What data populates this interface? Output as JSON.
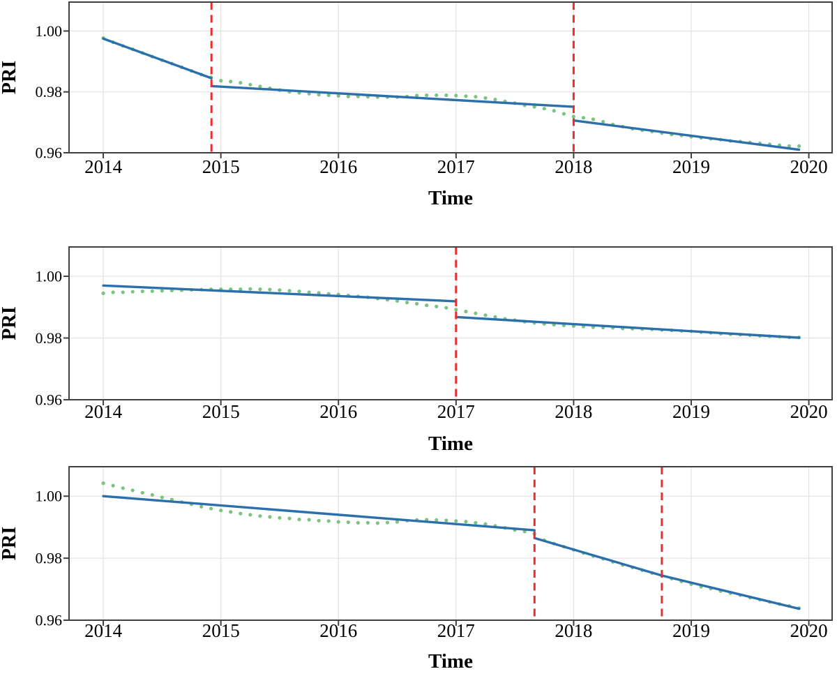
{
  "figure": {
    "background": "#ffffff",
    "colors": {
      "trend_line": "#2b6fac",
      "scatter_dot": "#7cc47e",
      "breakpoint_line": "#ec2d2d",
      "grid": "#e4e4e4",
      "axis": "#3f3f3f",
      "text": "#000000"
    }
  },
  "chart_data": [
    {
      "type": "scatter",
      "panel": "top",
      "xlabel": "Time",
      "ylabel": "PRI",
      "xlim": [
        2013.709,
        2020.198
      ],
      "ylim": [
        0.96,
        1.0095
      ],
      "grid": true,
      "xticks": [
        2014,
        2015,
        2016,
        2017,
        2018,
        2019,
        2020
      ],
      "xtick_labels": [
        "2014",
        "2015",
        "2016",
        "2017",
        "2018",
        "2019",
        "2020"
      ],
      "yticks": [
        0.96,
        0.98,
        1.0
      ],
      "ytick_labels": [
        "0.96",
        "0.98",
        "1.00"
      ],
      "breakpoints": [
        2014.92,
        2018.0
      ],
      "trend_segments": [
        {
          "x0": 2014.0,
          "y0": 0.9975,
          "x1": 2014.92,
          "y1": 0.9845
        },
        {
          "x0": 2014.92,
          "y0": 0.9819,
          "x1": 2018.0,
          "y1": 0.9751
        },
        {
          "x0": 2018.0,
          "y0": 0.9706,
          "x1": 2019.917,
          "y1": 0.961
        }
      ],
      "scatter": {
        "x_start": 2014.0,
        "x_step": 0.0833333,
        "count": 72,
        "y": [
          0.9977,
          0.9963,
          0.9951,
          0.994,
          0.9928,
          0.9916,
          0.9904,
          0.9893,
          0.9881,
          0.9869,
          0.9857,
          0.9848,
          0.9837,
          0.9834,
          0.983,
          0.9824,
          0.9818,
          0.9812,
          0.9806,
          0.98,
          0.9797,
          0.9794,
          0.9791,
          0.9789,
          0.9787,
          0.9785,
          0.9785,
          0.9784,
          0.9783,
          0.9783,
          0.9783,
          0.9785,
          0.9788,
          0.9789,
          0.9789,
          0.9789,
          0.9788,
          0.9786,
          0.9784,
          0.978,
          0.9775,
          0.9769,
          0.9763,
          0.9756,
          0.9751,
          0.9745,
          0.9738,
          0.9728,
          0.9719,
          0.9715,
          0.971,
          0.9702,
          0.9693,
          0.9686,
          0.9679,
          0.9674,
          0.967,
          0.9665,
          0.966,
          0.9657,
          0.9653,
          0.9649,
          0.9646,
          0.9643,
          0.9639,
          0.9637,
          0.9634,
          0.9631,
          0.9628,
          0.9625,
          0.9622,
          0.9622
        ]
      }
    },
    {
      "type": "scatter",
      "panel": "middle",
      "xlabel": "Time",
      "ylabel": "PRI",
      "xlim": [
        2013.709,
        2020.198
      ],
      "ylim": [
        0.96,
        1.0095
      ],
      "grid": true,
      "xticks": [
        2014,
        2015,
        2016,
        2017,
        2018,
        2019,
        2020
      ],
      "xtick_labels": [
        "2014",
        "2015",
        "2016",
        "2017",
        "2018",
        "2019",
        "2020"
      ],
      "yticks": [
        0.96,
        0.98,
        1.0
      ],
      "ytick_labels": [
        "0.96",
        "0.98",
        "1.00"
      ],
      "breakpoints": [
        2017.0
      ],
      "trend_segments": [
        {
          "x0": 2014.0,
          "y0": 0.997,
          "x1": 2017.0,
          "y1": 0.9919
        },
        {
          "x0": 2017.0,
          "y0": 0.9868,
          "x1": 2019.917,
          "y1": 0.9801
        }
      ],
      "scatter": {
        "x_start": 2014.0,
        "x_step": 0.0833333,
        "count": 72,
        "y": [
          0.9945,
          0.9948,
          0.9948,
          0.995,
          0.9951,
          0.9952,
          0.9953,
          0.9954,
          0.9955,
          0.9956,
          0.9957,
          0.9958,
          0.9958,
          0.9958,
          0.9958,
          0.9959,
          0.9958,
          0.9957,
          0.9955,
          0.9953,
          0.9951,
          0.9948,
          0.9946,
          0.9943,
          0.9941,
          0.9938,
          0.9935,
          0.9932,
          0.9928,
          0.9924,
          0.992,
          0.9915,
          0.9911,
          0.9906,
          0.9902,
          0.9898,
          0.9892,
          0.9886,
          0.988,
          0.9874,
          0.9868,
          0.9862,
          0.9858,
          0.9853,
          0.9849,
          0.9846,
          0.9843,
          0.9841,
          0.9839,
          0.9837,
          0.9835,
          0.9834,
          0.9833,
          0.9831,
          0.983,
          0.9829,
          0.9828,
          0.9826,
          0.9825,
          0.9823,
          0.9822,
          0.9819,
          0.9817,
          0.9814,
          0.9812,
          0.9811,
          0.9809,
          0.9807,
          0.9806,
          0.9804,
          0.9802,
          0.9802
        ]
      }
    },
    {
      "type": "scatter",
      "panel": "bottom",
      "xlabel": "Time",
      "ylabel": "PRI",
      "xlim": [
        2013.709,
        2020.198
      ],
      "ylim": [
        0.96,
        1.0095
      ],
      "grid": true,
      "xticks": [
        2014,
        2015,
        2016,
        2017,
        2018,
        2019,
        2020
      ],
      "xtick_labels": [
        "2014",
        "2015",
        "2016",
        "2017",
        "2018",
        "2019",
        "2020"
      ],
      "yticks": [
        0.96,
        0.98,
        1.0
      ],
      "ytick_labels": [
        "0.96",
        "0.98",
        "1.00"
      ],
      "breakpoints": [
        2017.667,
        2018.75
      ],
      "trend_segments": [
        {
          "x0": 2014.0,
          "y0": 1.0,
          "x1": 2017.667,
          "y1": 0.989
        },
        {
          "x0": 2017.667,
          "y0": 0.9865,
          "x1": 2018.75,
          "y1": 0.9744
        },
        {
          "x0": 2018.75,
          "y0": 0.9744,
          "x1": 2019.917,
          "y1": 0.9637
        }
      ],
      "scatter": {
        "x_start": 2014.0,
        "x_step": 0.0833333,
        "count": 72,
        "y": [
          1.0042,
          1.0034,
          1.0026,
          1.0019,
          1.0011,
          1.0004,
          0.9996,
          0.9989,
          0.9981,
          0.9974,
          0.9966,
          0.996,
          0.9954,
          0.9949,
          0.9944,
          0.994,
          0.9936,
          0.9933,
          0.993,
          0.9928,
          0.9925,
          0.9924,
          0.9921,
          0.992,
          0.9917,
          0.9916,
          0.9914,
          0.9914,
          0.9913,
          0.9915,
          0.9917,
          0.9921,
          0.9923,
          0.9924,
          0.9923,
          0.9922,
          0.992,
          0.9918,
          0.9914,
          0.991,
          0.9904,
          0.9898,
          0.9891,
          0.9886,
          0.9878,
          0.9858,
          0.9847,
          0.9837,
          0.9827,
          0.9817,
          0.9807,
          0.9798,
          0.9788,
          0.9778,
          0.977,
          0.9761,
          0.9752,
          0.9744,
          0.9734,
          0.9725,
          0.9716,
          0.9708,
          0.9702,
          0.9694,
          0.9687,
          0.9681,
          0.9673,
          0.9666,
          0.9659,
          0.9652,
          0.9646,
          0.9639
        ]
      }
    }
  ]
}
